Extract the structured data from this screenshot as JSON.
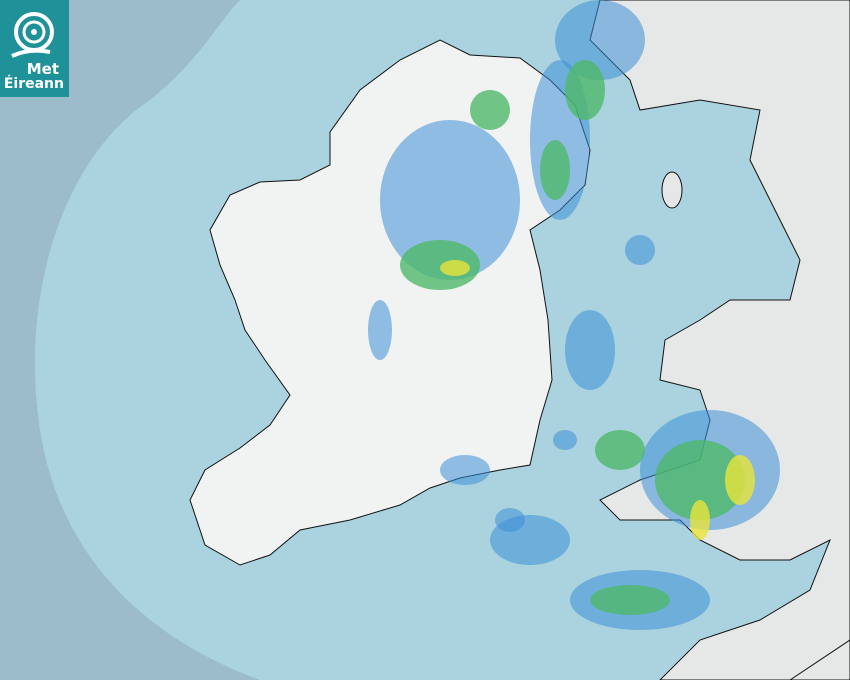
{
  "logo": {
    "line1": "Met",
    "line2": "Éireann"
  },
  "colors": {
    "outside_range": "#9dbccb",
    "radar_coverage": "#aad3df",
    "land": "#f2f3f3",
    "rain_light": "#3c8fd6",
    "rain_moderate": "#4fb86a",
    "rain_heavy": "#e8e43a",
    "logo_bg": "#1f9199"
  }
}
